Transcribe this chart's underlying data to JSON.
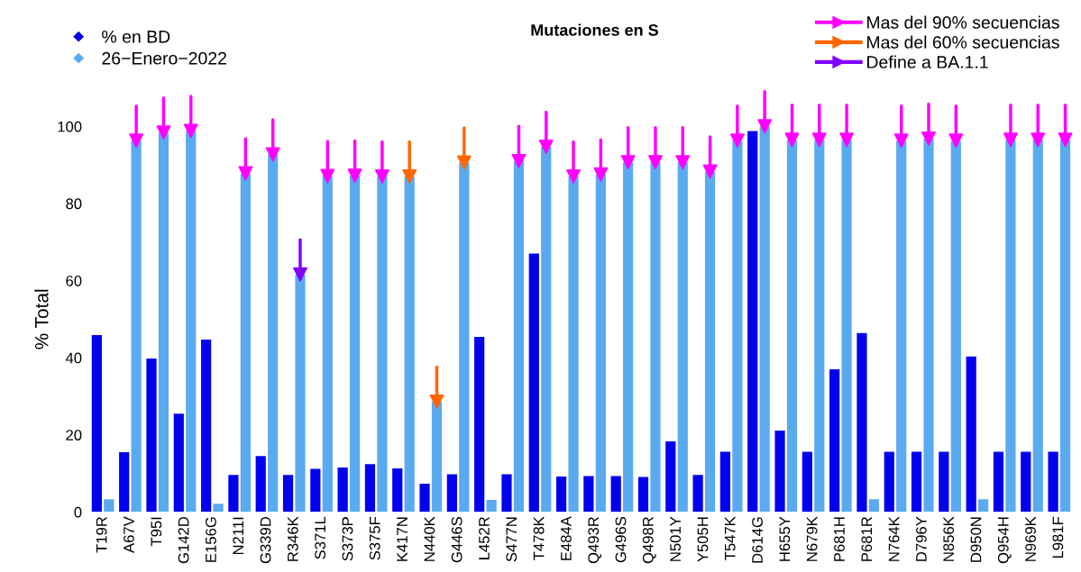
{
  "chart_data": {
    "type": "bar",
    "title": "Mutaciones en S",
    "ylabel": "% Total",
    "categories": [
      "T19R",
      "A67V",
      "T95I",
      "G142D",
      "E156G",
      "N211I",
      "G339D",
      "R346K",
      "S371L",
      "S373P",
      "S375F",
      "K417N",
      "N440K",
      "G446S",
      "L452R",
      "S477N",
      "T478K",
      "E484A",
      "Q493R",
      "G496S",
      "Q498R",
      "N501Y",
      "Y505H",
      "T547K",
      "D614G",
      "H655Y",
      "N679K",
      "P681H",
      "P681R",
      "N764K",
      "D796Y",
      "N856K",
      "D950N",
      "Q954H",
      "N969K",
      "L981F"
    ],
    "series": [
      {
        "name": "% en BD",
        "color": "#0000ee",
        "values": [
          45.9,
          15.5,
          39.8,
          25.5,
          44.7,
          9.6,
          14.5,
          9.6,
          11.2,
          11.5,
          12.4,
          11.3,
          7.3,
          9.8,
          45.4,
          9.8,
          67,
          9.2,
          9.3,
          9.3,
          9.1,
          18.3,
          9.6,
          15.6,
          98.8,
          21.1,
          15.6,
          37,
          46.4,
          15.6,
          15.6,
          15.6,
          40.3,
          15.6,
          15.6,
          15.6
        ]
      },
      {
        "name": "26−Enero−2022",
        "color": "#5aaaf0",
        "values": [
          3.3,
          96.3,
          98.4,
          98.8,
          2.1,
          87.8,
          92.7,
          61.6,
          87.1,
          87.2,
          87,
          87,
          28.6,
          90.6,
          3.1,
          91,
          94.7,
          87,
          87.5,
          90.7,
          90.7,
          90.7,
          88.3,
          96.3,
          100,
          96.5,
          96.5,
          96.5,
          3.3,
          96.3,
          96.8,
          96.3,
          3.3,
          96.5,
          96.5,
          96.5
        ]
      },
      {
        "name": "Mas del 90% secuencias",
        "type": "scatter",
        "color": "#ff00ff",
        "values": [
          null,
          96.3,
          98.4,
          98.8,
          null,
          87.8,
          92.7,
          null,
          87.1,
          87.2,
          87,
          null,
          null,
          null,
          null,
          91,
          94.7,
          87,
          87.5,
          90.7,
          90.7,
          90.7,
          88.3,
          96.3,
          100,
          96.5,
          96.5,
          96.5,
          null,
          96.3,
          96.8,
          96.3,
          null,
          96.5,
          96.5,
          96.5
        ]
      },
      {
        "name": "Mas del 60% secuencias",
        "type": "scatter",
        "color": "#ff6600",
        "values": [
          null,
          null,
          null,
          null,
          null,
          null,
          null,
          null,
          null,
          null,
          null,
          87,
          28.6,
          90.6,
          null,
          null,
          null,
          null,
          null,
          null,
          null,
          null,
          null,
          null,
          null,
          null,
          null,
          null,
          null,
          null,
          null,
          null,
          null,
          null,
          null,
          null
        ]
      },
      {
        "name": "Define a BA.1.1",
        "type": "scatter",
        "color": "#8000ff",
        "values": [
          null,
          null,
          null,
          null,
          null,
          null,
          null,
          61.6,
          null,
          null,
          null,
          null,
          null,
          null,
          null,
          null,
          null,
          null,
          null,
          null,
          null,
          null,
          null,
          null,
          null,
          null,
          null,
          null,
          null,
          null,
          null,
          null,
          null,
          null,
          null,
          null
        ]
      }
    ],
    "marker": "triangle",
    "ylim": [
      0,
      100
    ],
    "yticks": [
      0,
      20,
      40,
      60,
      80,
      100
    ],
    "grid": false,
    "legend": "top"
  }
}
